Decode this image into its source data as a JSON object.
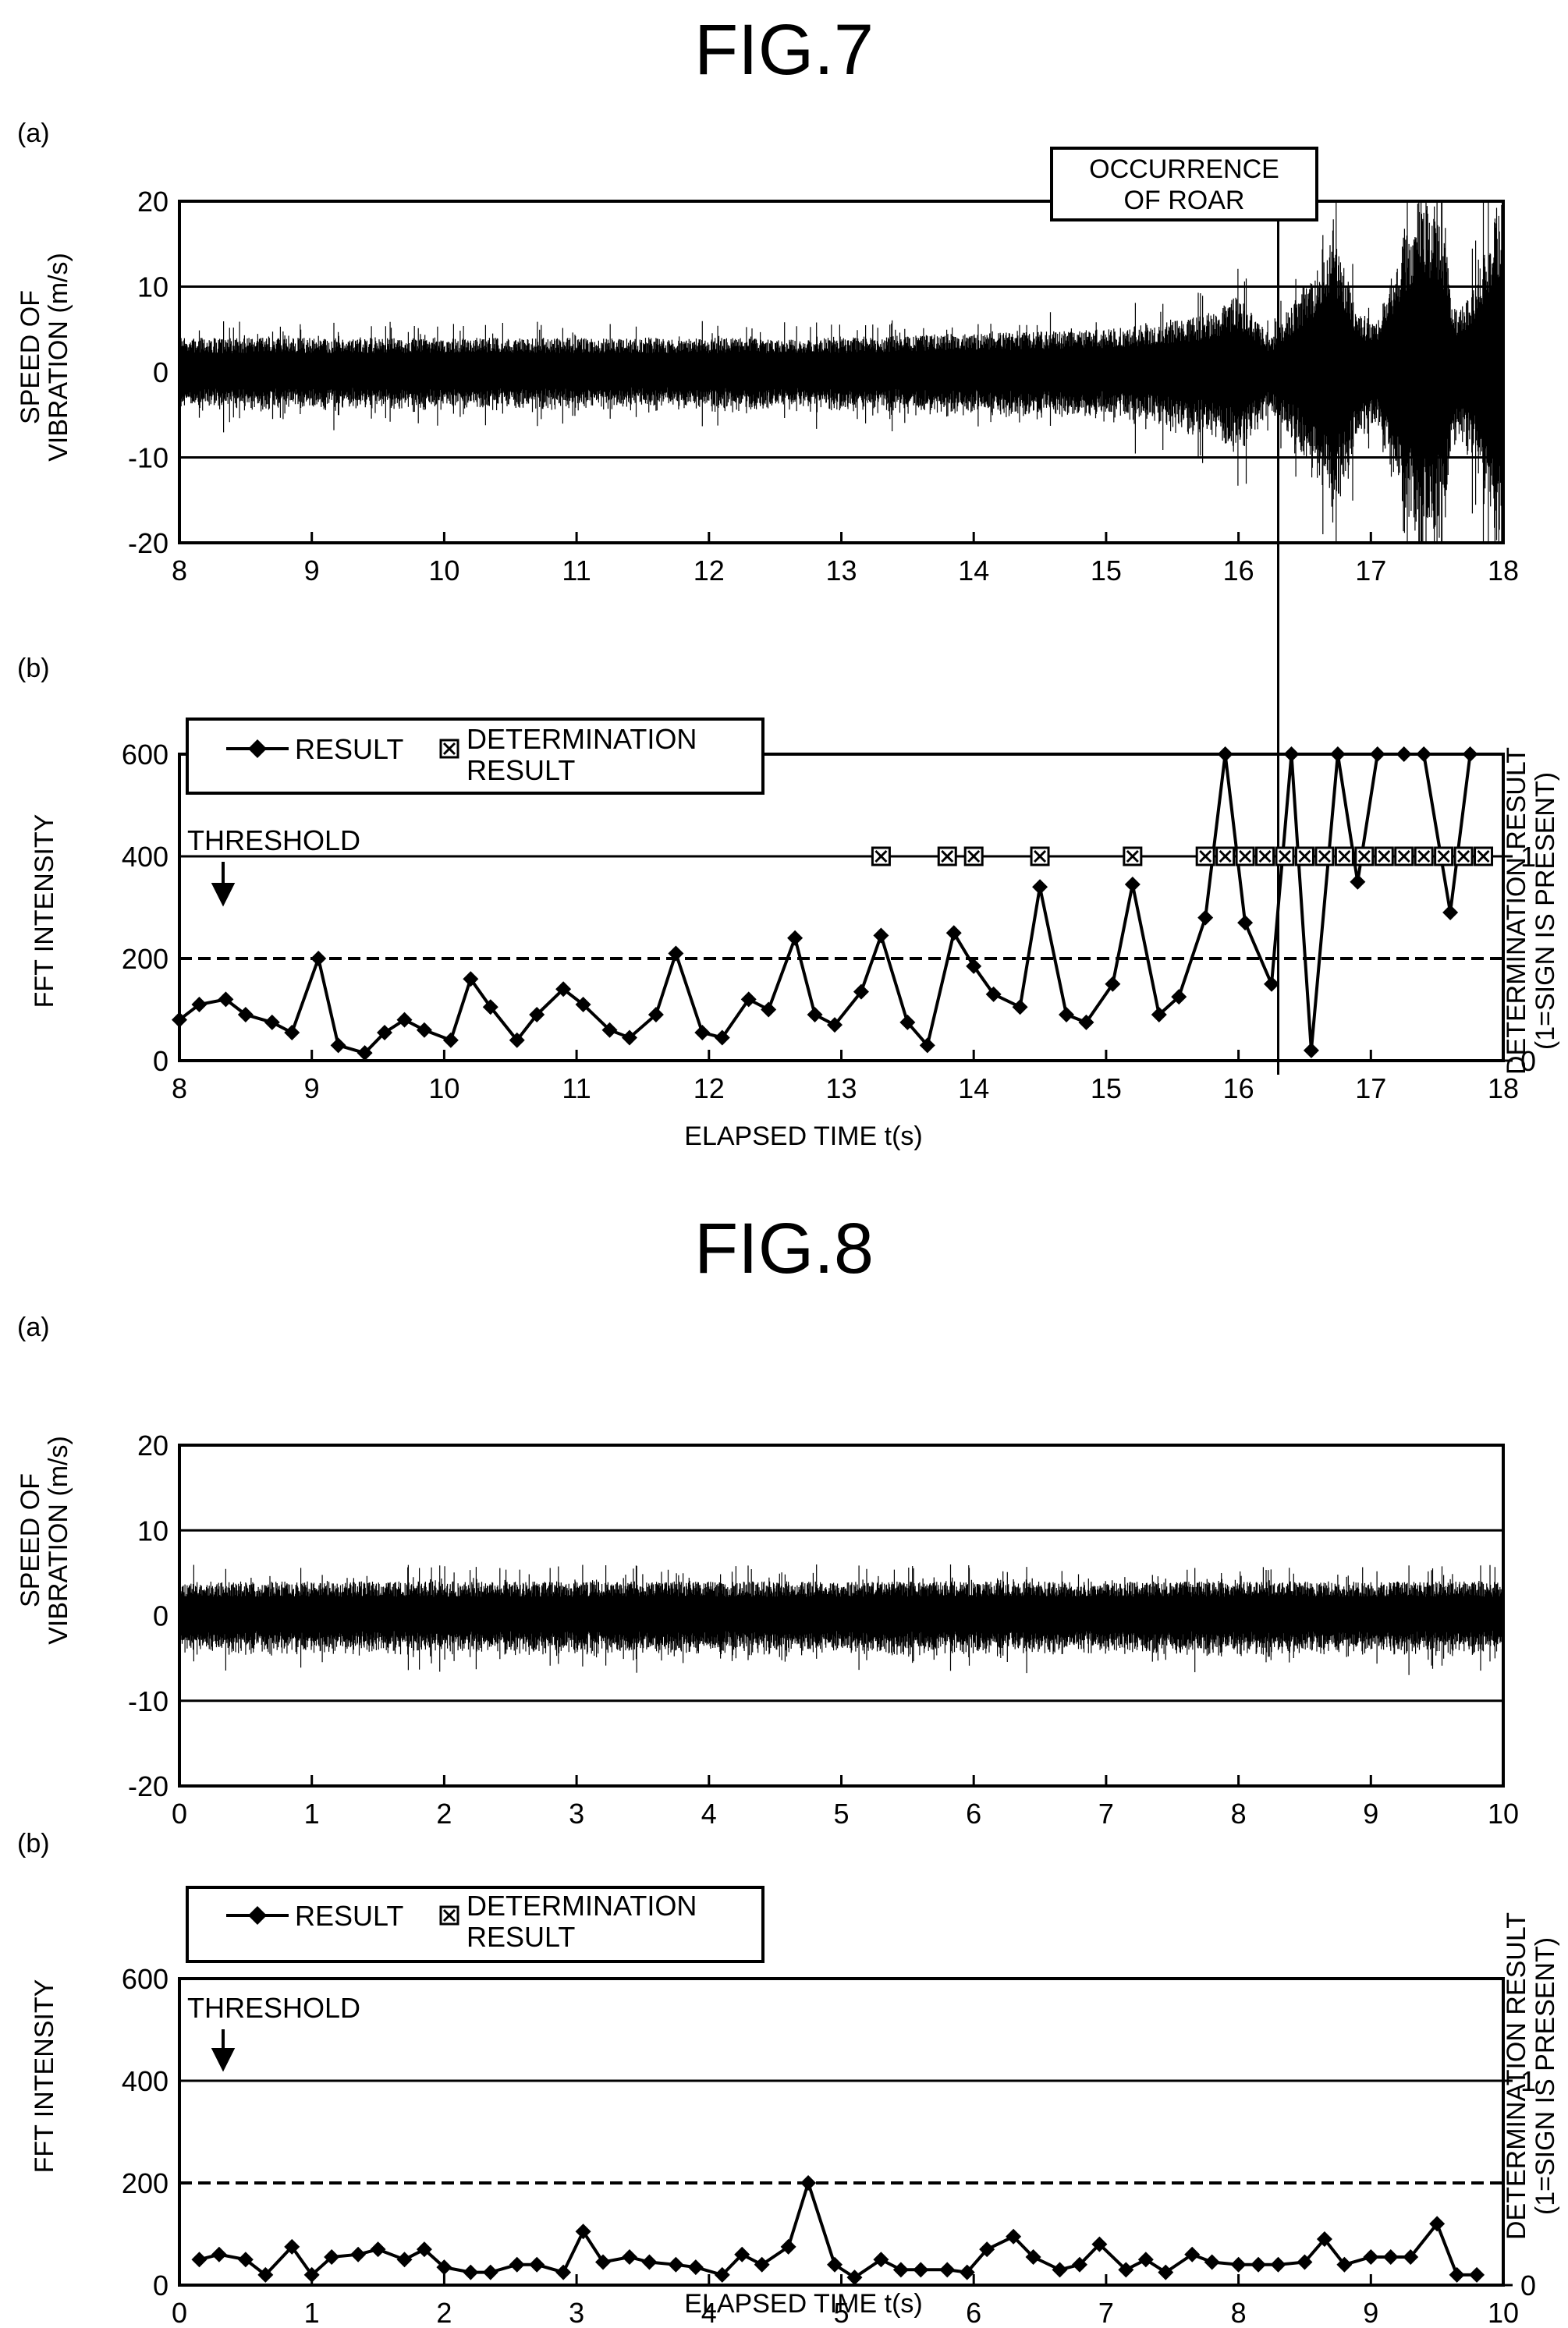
{
  "fig7": {
    "title": "FIG.7",
    "a_label": "(a)",
    "b_label": "(b)",
    "annotation_line1": "OCCURRENCE",
    "annotation_line2": "OF ROAR",
    "threshold_label": "THRESHOLD",
    "legend_result": "RESULT",
    "legend_det_line1": "DETERMINATION",
    "legend_det_line2": "RESULT",
    "top_ylabel_line1": "SPEED OF",
    "top_ylabel_line2": "VIBRATION (m/s)",
    "bottom_ylabel": "FFT INTENSITY",
    "right_ylabel_line1": "DETERMINATION RESULT",
    "right_ylabel_line2": "(1=SIGN IS PRESENT)",
    "xlabel": "ELAPSED TIME t(s)"
  },
  "fig8": {
    "title": "FIG.8",
    "a_label": "(a)",
    "b_label": "(b)",
    "threshold_label": "THRESHOLD",
    "legend_result": "RESULT",
    "legend_det_line1": "DETERMINATION",
    "legend_det_line2": "RESULT",
    "top_ylabel_line1": "SPEED OF",
    "top_ylabel_line2": "VIBRATION (m/s)",
    "bottom_ylabel": "FFT INTENSITY",
    "right_ylabel_line1": "DETERMINATION RESULT",
    "right_ylabel_line2": "(1=SIGN IS PRESENT)",
    "xlabel": "ELAPSED TIME t(s)"
  },
  "chart_data": [
    {
      "id": "fig7a",
      "type": "area",
      "xlim": [
        8,
        18
      ],
      "ylim": [
        -20,
        20
      ],
      "xticks": [
        8,
        9,
        10,
        11,
        12,
        13,
        14,
        15,
        16,
        17,
        18
      ],
      "yticks": [
        -20,
        -10,
        0,
        10,
        20
      ],
      "grid_y": [
        -10,
        10
      ],
      "roar_time": 16.3,
      "envelope": {
        "x": [
          8,
          9,
          10,
          11,
          12,
          13,
          14,
          15,
          15.5,
          15.8,
          16,
          16.1,
          16.25,
          16.4,
          16.55,
          16.75,
          16.9,
          17.05,
          17.2,
          17.35,
          17.5,
          17.65,
          17.8,
          17.95,
          18
        ],
        "amplitude": [
          4,
          4,
          4,
          4,
          4,
          4,
          4.5,
          5,
          6,
          7,
          9,
          7,
          4,
          8,
          11,
          15,
          7,
          6,
          14,
          20,
          20,
          7,
          11,
          20,
          20
        ]
      }
    },
    {
      "id": "fig7b",
      "type": "line",
      "xlim": [
        8,
        18
      ],
      "ylim": [
        0,
        600
      ],
      "ylim_right": [
        0,
        1
      ],
      "xticks": [
        8,
        9,
        10,
        11,
        12,
        13,
        14,
        15,
        16,
        17,
        18
      ],
      "yticks": [
        0,
        200,
        400,
        600
      ],
      "yticks_right": [
        0,
        1
      ],
      "threshold": 200,
      "series": [
        {
          "name": "RESULT",
          "x": [
            8.0,
            8.15,
            8.35,
            8.5,
            8.7,
            8.85,
            9.05,
            9.2,
            9.4,
            9.55,
            9.7,
            9.85,
            10.05,
            10.2,
            10.35,
            10.55,
            10.7,
            10.9,
            11.05,
            11.25,
            11.4,
            11.6,
            11.75,
            11.95,
            12.1,
            12.3,
            12.45,
            12.65,
            12.8,
            12.95,
            13.15,
            13.3,
            13.5,
            13.65,
            13.85,
            14.0,
            14.15,
            14.35,
            14.5,
            14.7,
            14.85,
            15.05,
            15.2,
            15.4,
            15.55,
            15.75,
            15.9,
            16.05,
            16.25,
            16.4,
            16.55,
            16.75,
            16.9,
            17.05,
            17.25,
            17.4,
            17.6,
            17.75
          ],
          "values": [
            80,
            110,
            120,
            90,
            75,
            55,
            200,
            30,
            15,
            55,
            80,
            60,
            40,
            160,
            105,
            40,
            90,
            140,
            110,
            60,
            45,
            90,
            210,
            55,
            45,
            120,
            100,
            240,
            90,
            70,
            135,
            245,
            75,
            30,
            250,
            185,
            130,
            105,
            340,
            90,
            75,
            150,
            345,
            90,
            125,
            280,
            600,
            270,
            150,
            600,
            20,
            600,
            350,
            600,
            600,
            600,
            290,
            600
          ]
        },
        {
          "name": "DETERMINATION RESULT",
          "x": [
            13.3,
            13.8,
            14.0,
            14.5,
            15.2,
            15.75,
            15.9,
            16.05,
            16.2,
            16.35,
            16.5,
            16.65,
            16.8,
            16.95,
            17.1,
            17.25,
            17.4,
            17.55,
            17.7,
            17.85
          ],
          "values": [
            1,
            1,
            1,
            1,
            1,
            1,
            1,
            1,
            1,
            1,
            1,
            1,
            1,
            1,
            1,
            1,
            1,
            1,
            1,
            1
          ]
        }
      ]
    },
    {
      "id": "fig8a",
      "type": "area",
      "xlim": [
        0,
        10
      ],
      "ylim": [
        -20,
        20
      ],
      "xticks": [
        0,
        1,
        2,
        3,
        4,
        5,
        6,
        7,
        8,
        9,
        10
      ],
      "yticks": [
        -20,
        -10,
        0,
        10,
        20
      ],
      "grid_y": [
        -10,
        10
      ],
      "envelope": {
        "x": [
          0,
          10
        ],
        "amplitude": [
          4,
          4
        ]
      }
    },
    {
      "id": "fig8b",
      "type": "line",
      "xlim": [
        0,
        10
      ],
      "ylim": [
        0,
        600
      ],
      "ylim_right": [
        0,
        1
      ],
      "xticks": [
        0,
        1,
        2,
        3,
        4,
        5,
        6,
        7,
        8,
        9,
        10
      ],
      "yticks": [
        0,
        200,
        400,
        600
      ],
      "yticks_right": [
        0,
        1
      ],
      "threshold": 200,
      "series": [
        {
          "name": "RESULT",
          "x": [
            0.15,
            0.3,
            0.5,
            0.65,
            0.85,
            1.0,
            1.15,
            1.35,
            1.5,
            1.7,
            1.85,
            2.0,
            2.2,
            2.35,
            2.55,
            2.7,
            2.9,
            3.05,
            3.2,
            3.4,
            3.55,
            3.75,
            3.9,
            4.1,
            4.25,
            4.4,
            4.6,
            4.75,
            4.95,
            5.1,
            5.3,
            5.45,
            5.6,
            5.8,
            5.95,
            6.1,
            6.3,
            6.45,
            6.65,
            6.8,
            6.95,
            7.15,
            7.3,
            7.45,
            7.65,
            7.8,
            8.0,
            8.15,
            8.3,
            8.5,
            8.65,
            8.8,
            9.0,
            9.15,
            9.3,
            9.5,
            9.65,
            9.8
          ],
          "values": [
            50,
            60,
            50,
            20,
            75,
            20,
            55,
            60,
            70,
            50,
            70,
            35,
            25,
            25,
            40,
            40,
            25,
            105,
            45,
            55,
            45,
            40,
            35,
            20,
            60,
            40,
            75,
            200,
            40,
            15,
            50,
            30,
            30,
            30,
            25,
            70,
            95,
            55,
            30,
            40,
            80,
            30,
            50,
            25,
            60,
            45,
            40,
            40,
            40,
            45,
            90,
            40,
            55,
            55,
            55,
            120,
            20,
            20
          ]
        },
        {
          "name": "DETERMINATION RESULT",
          "x": [],
          "values": []
        }
      ]
    }
  ]
}
